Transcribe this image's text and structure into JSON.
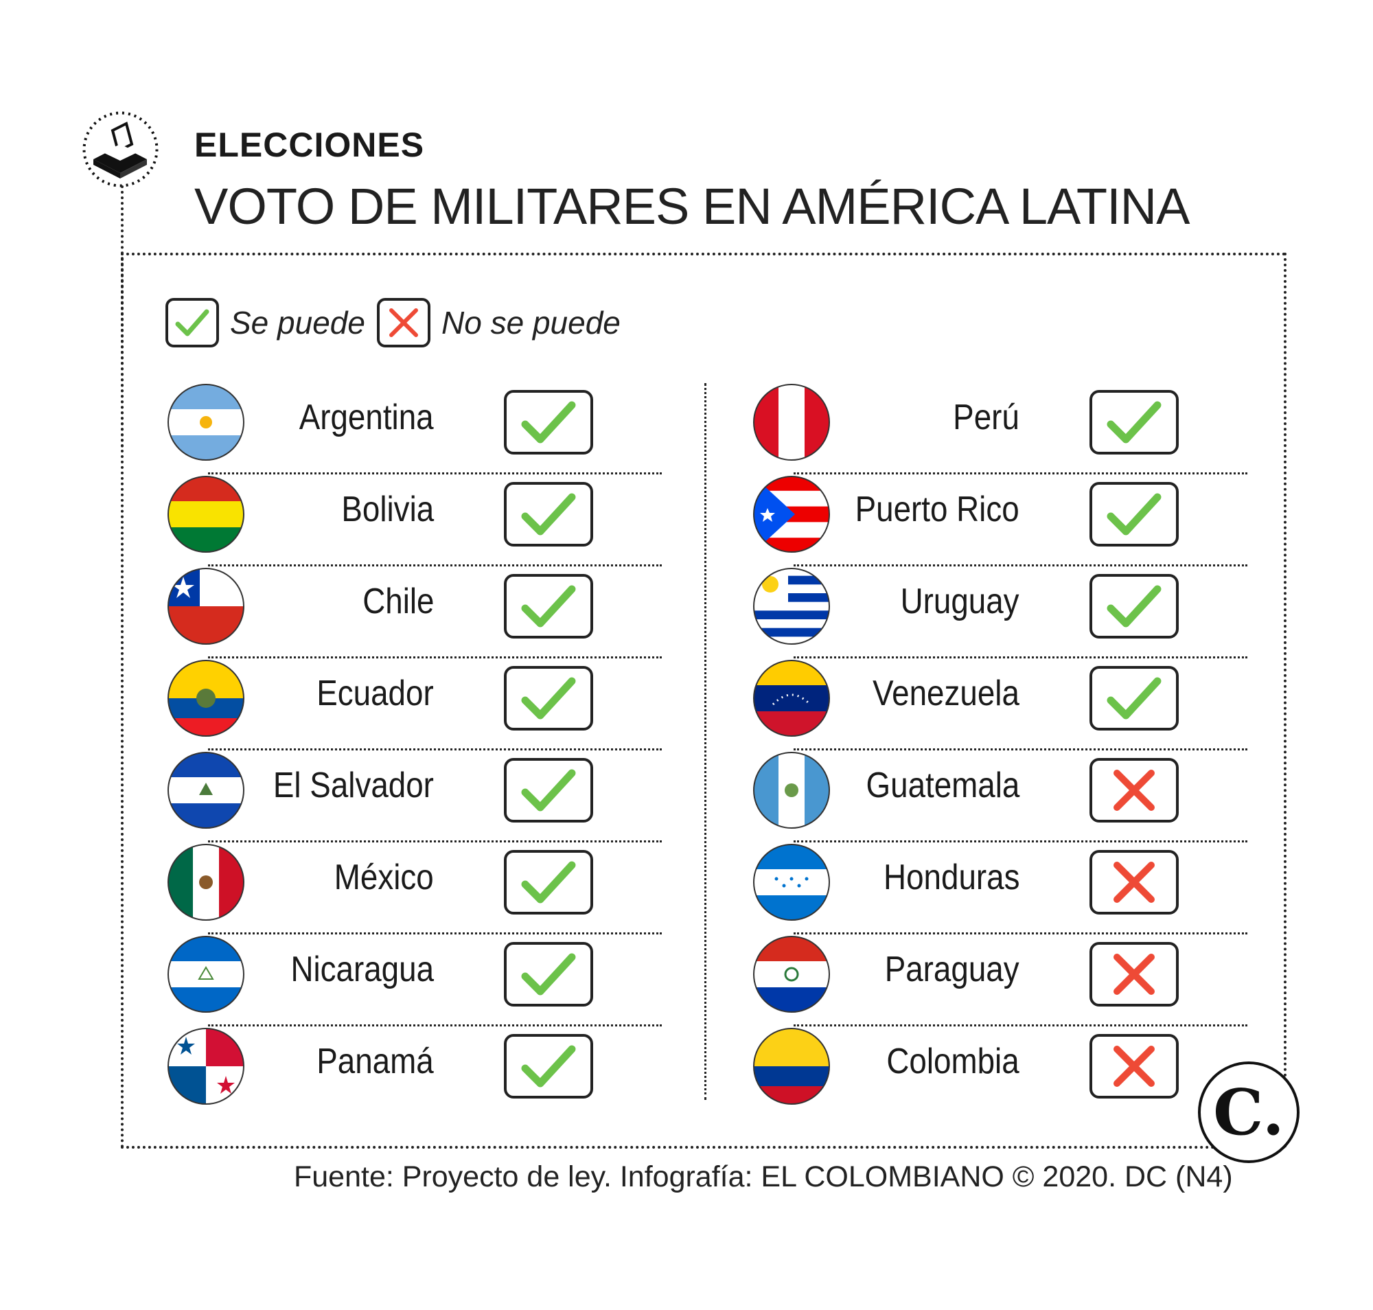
{
  "header": {
    "kicker": "ELECCIONES",
    "title": "VOTO DE MILITARES EN AMÉRICA LATINA",
    "icon": "ballot-box-icon"
  },
  "legend": {
    "yes_label": "Se puede",
    "no_label": "No se puede",
    "yes_color": "#6cc24a",
    "no_color": "#ee4a36"
  },
  "countries_left": [
    {
      "name": "Argentina",
      "status": "yes"
    },
    {
      "name": "Bolivia",
      "status": "yes"
    },
    {
      "name": "Chile",
      "status": "yes"
    },
    {
      "name": "Ecuador",
      "status": "yes"
    },
    {
      "name": "El Salvador",
      "status": "yes"
    },
    {
      "name": "México",
      "status": "yes"
    },
    {
      "name": "Nicaragua",
      "status": "yes"
    },
    {
      "name": "Panamá",
      "status": "yes"
    }
  ],
  "countries_right": [
    {
      "name": "Perú",
      "status": "yes"
    },
    {
      "name": "Puerto Rico",
      "status": "yes"
    },
    {
      "name": "Uruguay",
      "status": "yes"
    },
    {
      "name": "Venezuela",
      "status": "yes"
    },
    {
      "name": "Guatemala",
      "status": "no"
    },
    {
      "name": "Honduras",
      "status": "no"
    },
    {
      "name": "Paraguay",
      "status": "no"
    },
    {
      "name": "Colombia",
      "status": "no"
    }
  ],
  "logo": "C.",
  "source": "Fuente: Proyecto de ley. Infografía: EL COLOMBIANO © 2020. DC (N4)"
}
